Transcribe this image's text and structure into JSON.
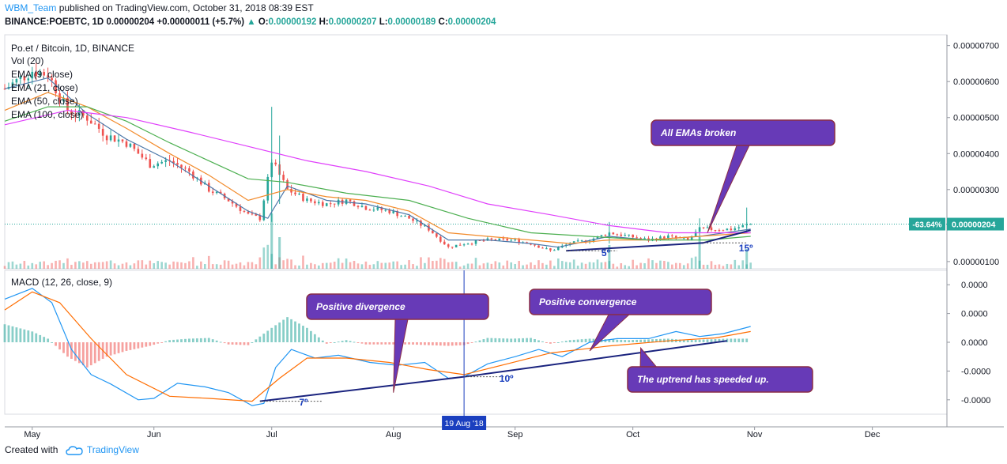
{
  "header": {
    "author": "WBM_Team",
    "published": "published on TradingView.com, October 31, 2018 08:39 EST",
    "symbol": "BINANCE:POEBTC, 1D",
    "last": "0.00000204",
    "change": "+0.00000011 (+5.7%)",
    "o_label": "O:",
    "o": "0.00000192",
    "h_label": "H:",
    "h": "0.00000207",
    "l_label": "L:",
    "l": "0.00000189",
    "c_label": "C:",
    "c": "0.00000204"
  },
  "legend": {
    "title": "Po.et / Bitcoin, 1D, BINANCE",
    "items": [
      "Vol (20)",
      "EMA (9, close)",
      "EMA (21, close)",
      "EMA (50, close)",
      "EMA (100, close)"
    ]
  },
  "macd_legend": "MACD (12, 26, close, 9)",
  "price_axis": [
    "0.00000700",
    "0.00000600",
    "0.00000500",
    "0.00000400",
    "0.00000300",
    "0.00000200",
    "0.00000100"
  ],
  "price_badge_pct": "-63.64%",
  "price_badge_value": "0.00000204",
  "macd_axis": [
    "0.0000",
    "0.0000",
    "0.0000",
    "-0.0000",
    "-0.0000"
  ],
  "time_axis": [
    "May",
    "Jun",
    "Jul",
    "Aug",
    "Sep",
    "Oct",
    "Nov",
    "Dec"
  ],
  "crosshair_label": "19 Aug '18",
  "annotations": {
    "emas_broken": "All EMAs broken",
    "pos_divergence": "Positive divergence",
    "pos_convergence": "Positive convergence",
    "uptrend": "The uptrend has speeded up.",
    "angle_5": "5º",
    "angle_15": "15º",
    "angle_7": "7º",
    "angle_10": "10º"
  },
  "footer": {
    "created_with": "Created with",
    "brand": "TradingView"
  },
  "colors": {
    "up": "#26a69a",
    "down": "#ef5350",
    "ema9": "#4a76a8",
    "ema21": "#f28b2c",
    "ema50": "#4caf50",
    "ema100": "#e040fb",
    "macd": "#2196f3",
    "signal": "#ff6d00",
    "callout": "#673ab7",
    "trend": "#1a237e"
  },
  "chart_data": {
    "type": "candlestick",
    "title": "Po.et / Bitcoin, 1D, BINANCE",
    "x_range": [
      "2018-04-24",
      "2018-12-20"
    ],
    "price_ylim": [
      8e-07,
      7.3e-06
    ],
    "price": [
      [
        "2018-04-24",
        5.8e-06
      ],
      [
        "2018-05-01",
        6.3e-06
      ],
      [
        "2018-05-05",
        6.2e-06
      ],
      [
        "2018-05-10",
        5.2e-06
      ],
      [
        "2018-05-15",
        5e-06
      ],
      [
        "2018-05-20",
        4.5e-06
      ],
      [
        "2018-05-25",
        4.3e-06
      ],
      [
        "2018-05-31",
        3.7e-06
      ],
      [
        "2018-06-05",
        3.8e-06
      ],
      [
        "2018-06-10",
        3.5e-06
      ],
      [
        "2018-06-15",
        3e-06
      ],
      [
        "2018-06-20",
        2.7e-06
      ],
      [
        "2018-06-25",
        2.3e-06
      ],
      [
        "2018-06-28",
        2.2e-06
      ],
      [
        "2018-07-01",
        3.8e-06
      ],
      [
        "2018-07-05",
        3e-06
      ],
      [
        "2018-07-10",
        2.7e-06
      ],
      [
        "2018-07-15",
        2.6e-06
      ],
      [
        "2018-07-20",
        2.7e-06
      ],
      [
        "2018-07-25",
        2.5e-06
      ],
      [
        "2018-07-31",
        2.4e-06
      ],
      [
        "2018-08-05",
        2.2e-06
      ],
      [
        "2018-08-10",
        1.9e-06
      ],
      [
        "2018-08-15",
        1.4e-06
      ],
      [
        "2018-08-19",
        1.5e-06
      ],
      [
        "2018-08-25",
        1.6e-06
      ],
      [
        "2018-08-31",
        1.6e-06
      ],
      [
        "2018-09-05",
        1.5e-06
      ],
      [
        "2018-09-10",
        1.3e-06
      ],
      [
        "2018-09-15",
        1.5e-06
      ],
      [
        "2018-09-20",
        1.6e-06
      ],
      [
        "2018-09-25",
        1.8e-06
      ],
      [
        "2018-09-30",
        1.7e-06
      ],
      [
        "2018-10-05",
        1.6e-06
      ],
      [
        "2018-10-10",
        1.7e-06
      ],
      [
        "2018-10-15",
        1.6e-06
      ],
      [
        "2018-10-18",
        1.9e-06
      ],
      [
        "2018-10-22",
        1.9e-06
      ],
      [
        "2018-10-26",
        1.9e-06
      ],
      [
        "2018-10-31",
        2.04e-06
      ]
    ],
    "ema": [
      {
        "name": "EMA (9, close)",
        "color": "#4a76a8",
        "points": [
          [
            "2018-04-24",
            5.8e-06
          ],
          [
            "2018-05-05",
            6.1e-06
          ],
          [
            "2018-05-15",
            5.1e-06
          ],
          [
            "2018-05-25",
            4.4e-06
          ],
          [
            "2018-06-05",
            3.8e-06
          ],
          [
            "2018-06-15",
            3.1e-06
          ],
          [
            "2018-06-25",
            2.4e-06
          ],
          [
            "2018-06-30",
            2.2e-06
          ],
          [
            "2018-07-05",
            3.1e-06
          ],
          [
            "2018-07-15",
            2.7e-06
          ],
          [
            "2018-07-25",
            2.6e-06
          ],
          [
            "2018-08-05",
            2.3e-06
          ],
          [
            "2018-08-15",
            1.6e-06
          ],
          [
            "2018-08-25",
            1.6e-06
          ],
          [
            "2018-09-05",
            1.5e-06
          ],
          [
            "2018-09-12",
            1.4e-06
          ],
          [
            "2018-09-25",
            1.7e-06
          ],
          [
            "2018-10-05",
            1.6e-06
          ],
          [
            "2018-10-18",
            1.7e-06
          ],
          [
            "2018-10-31",
            1.9e-06
          ]
        ]
      },
      {
        "name": "EMA (21, close)",
        "color": "#f28b2c",
        "points": [
          [
            "2018-04-24",
            5.2e-06
          ],
          [
            "2018-05-05",
            5.7e-06
          ],
          [
            "2018-05-15",
            5.3e-06
          ],
          [
            "2018-05-25",
            4.7e-06
          ],
          [
            "2018-06-05",
            4e-06
          ],
          [
            "2018-06-15",
            3.4e-06
          ],
          [
            "2018-06-25",
            2.7e-06
          ],
          [
            "2018-07-05",
            3e-06
          ],
          [
            "2018-07-15",
            2.8e-06
          ],
          [
            "2018-07-25",
            2.7e-06
          ],
          [
            "2018-08-05",
            2.4e-06
          ],
          [
            "2018-08-15",
            1.8e-06
          ],
          [
            "2018-08-25",
            1.7e-06
          ],
          [
            "2018-09-05",
            1.6e-06
          ],
          [
            "2018-09-15",
            1.5e-06
          ],
          [
            "2018-09-25",
            1.6e-06
          ],
          [
            "2018-10-05",
            1.6e-06
          ],
          [
            "2018-10-18",
            1.7e-06
          ],
          [
            "2018-10-31",
            1.8e-06
          ]
        ]
      },
      {
        "name": "EMA (50, close)",
        "color": "#4caf50",
        "points": [
          [
            "2018-04-24",
            4.9e-06
          ],
          [
            "2018-05-05",
            5.3e-06
          ],
          [
            "2018-05-15",
            5.3e-06
          ],
          [
            "2018-05-25",
            4.9e-06
          ],
          [
            "2018-06-05",
            4.3e-06
          ],
          [
            "2018-06-15",
            3.8e-06
          ],
          [
            "2018-06-25",
            3.3e-06
          ],
          [
            "2018-07-05",
            3.2e-06
          ],
          [
            "2018-07-20",
            2.9e-06
          ],
          [
            "2018-08-05",
            2.7e-06
          ],
          [
            "2018-08-20",
            2.2e-06
          ],
          [
            "2018-09-05",
            1.8e-06
          ],
          [
            "2018-09-20",
            1.7e-06
          ],
          [
            "2018-10-05",
            1.6e-06
          ],
          [
            "2018-10-20",
            1.6e-06
          ],
          [
            "2018-10-31",
            1.7e-06
          ]
        ]
      },
      {
        "name": "EMA (100, close)",
        "color": "#e040fb",
        "points": [
          [
            "2018-04-24",
            4.8e-06
          ],
          [
            "2018-05-10",
            5.2e-06
          ],
          [
            "2018-05-25",
            5e-06
          ],
          [
            "2018-06-10",
            4.6e-06
          ],
          [
            "2018-06-25",
            4.2e-06
          ],
          [
            "2018-07-10",
            3.8e-06
          ],
          [
            "2018-07-25",
            3.5e-06
          ],
          [
            "2018-08-10",
            3.1e-06
          ],
          [
            "2018-08-25",
            2.6e-06
          ],
          [
            "2018-09-10",
            2.3e-06
          ],
          [
            "2018-09-25",
            2e-06
          ],
          [
            "2018-10-10",
            1.8e-06
          ],
          [
            "2018-10-25",
            1.8e-06
          ],
          [
            "2018-10-31",
            1.8e-06
          ]
        ]
      }
    ],
    "macd": [
      [
        "2018-04-24",
        0.6
      ],
      [
        "2018-05-01",
        0.75
      ],
      [
        "2018-05-06",
        0.55
      ],
      [
        "2018-05-11",
        -0.1
      ],
      [
        "2018-05-16",
        -0.45
      ],
      [
        "2018-05-21",
        -0.58
      ],
      [
        "2018-05-28",
        -0.8
      ],
      [
        "2018-06-01",
        -0.78
      ],
      [
        "2018-06-07",
        -0.57
      ],
      [
        "2018-06-14",
        -0.62
      ],
      [
        "2018-06-20",
        -0.7
      ],
      [
        "2018-06-26",
        -0.88
      ],
      [
        "2018-06-29",
        -0.85
      ],
      [
        "2018-07-02",
        -0.35
      ],
      [
        "2018-07-06",
        -0.1
      ],
      [
        "2018-07-12",
        -0.22
      ],
      [
        "2018-07-18",
        -0.18
      ],
      [
        "2018-07-26",
        -0.28
      ],
      [
        "2018-08-02",
        -0.32
      ],
      [
        "2018-08-09",
        -0.28
      ],
      [
        "2018-08-15",
        -0.5
      ],
      [
        "2018-08-19",
        -0.48
      ],
      [
        "2018-08-25",
        -0.3
      ],
      [
        "2018-09-01",
        -0.2
      ],
      [
        "2018-09-07",
        -0.1
      ],
      [
        "2018-09-13",
        -0.2
      ],
      [
        "2018-09-20",
        0.0
      ],
      [
        "2018-09-27",
        0.05
      ],
      [
        "2018-10-05",
        0.05
      ],
      [
        "2018-10-12",
        0.15
      ],
      [
        "2018-10-18",
        0.08
      ],
      [
        "2018-10-24",
        0.12
      ],
      [
        "2018-10-31",
        0.22
      ]
    ],
    "macd_signal": [
      [
        "2018-04-24",
        0.45
      ],
      [
        "2018-05-01",
        0.7
      ],
      [
        "2018-05-08",
        0.55
      ],
      [
        "2018-05-16",
        0.05
      ],
      [
        "2018-05-25",
        -0.45
      ],
      [
        "2018-06-05",
        -0.75
      ],
      [
        "2018-06-15",
        -0.78
      ],
      [
        "2018-06-26",
        -0.82
      ],
      [
        "2018-07-03",
        -0.5
      ],
      [
        "2018-07-10",
        -0.22
      ],
      [
        "2018-07-20",
        -0.22
      ],
      [
        "2018-07-31",
        -0.28
      ],
      [
        "2018-08-10",
        -0.38
      ],
      [
        "2018-08-19",
        -0.45
      ],
      [
        "2018-08-30",
        -0.3
      ],
      [
        "2018-09-10",
        -0.15
      ],
      [
        "2018-09-25",
        -0.05
      ],
      [
        "2018-10-10",
        0.02
      ],
      [
        "2018-10-22",
        0.06
      ],
      [
        "2018-10-31",
        0.15
      ]
    ],
    "macd_ylim": [
      -1.0,
      1.0
    ],
    "histogram": [
      [
        "2018-04-24",
        0.25
      ],
      [
        "2018-05-01",
        0.15
      ],
      [
        "2018-05-05",
        0.05
      ],
      [
        "2018-05-10",
        -0.2
      ],
      [
        "2018-05-15",
        -0.35
      ],
      [
        "2018-05-20",
        -0.2
      ],
      [
        "2018-05-25",
        -0.12
      ],
      [
        "2018-05-31",
        -0.05
      ],
      [
        "2018-06-05",
        0.03
      ],
      [
        "2018-06-10",
        0.05
      ],
      [
        "2018-06-15",
        0.06
      ],
      [
        "2018-06-20",
        -0.03
      ],
      [
        "2018-06-25",
        -0.04
      ],
      [
        "2018-07-01",
        0.2
      ],
      [
        "2018-07-05",
        0.35
      ],
      [
        "2018-07-10",
        0.2
      ],
      [
        "2018-07-15",
        -0.02
      ],
      [
        "2018-07-20",
        0.03
      ],
      [
        "2018-07-25",
        -0.03
      ],
      [
        "2018-07-31",
        -0.03
      ],
      [
        "2018-08-05",
        -0.03
      ],
      [
        "2018-08-10",
        -0.04
      ],
      [
        "2018-08-15",
        -0.05
      ],
      [
        "2018-08-19",
        -0.04
      ],
      [
        "2018-08-25",
        0.06
      ],
      [
        "2018-08-31",
        0.05
      ],
      [
        "2018-09-05",
        0.06
      ],
      [
        "2018-09-10",
        -0.02
      ],
      [
        "2018-09-15",
        0.03
      ],
      [
        "2018-09-20",
        0.05
      ],
      [
        "2018-09-25",
        0.04
      ],
      [
        "2018-09-30",
        0.03
      ],
      [
        "2018-10-05",
        0.04
      ],
      [
        "2018-10-10",
        0.05
      ],
      [
        "2018-10-15",
        0.03
      ],
      [
        "2018-10-20",
        0.04
      ],
      [
        "2018-10-25",
        0.05
      ],
      [
        "2018-10-31",
        0.05
      ]
    ]
  }
}
